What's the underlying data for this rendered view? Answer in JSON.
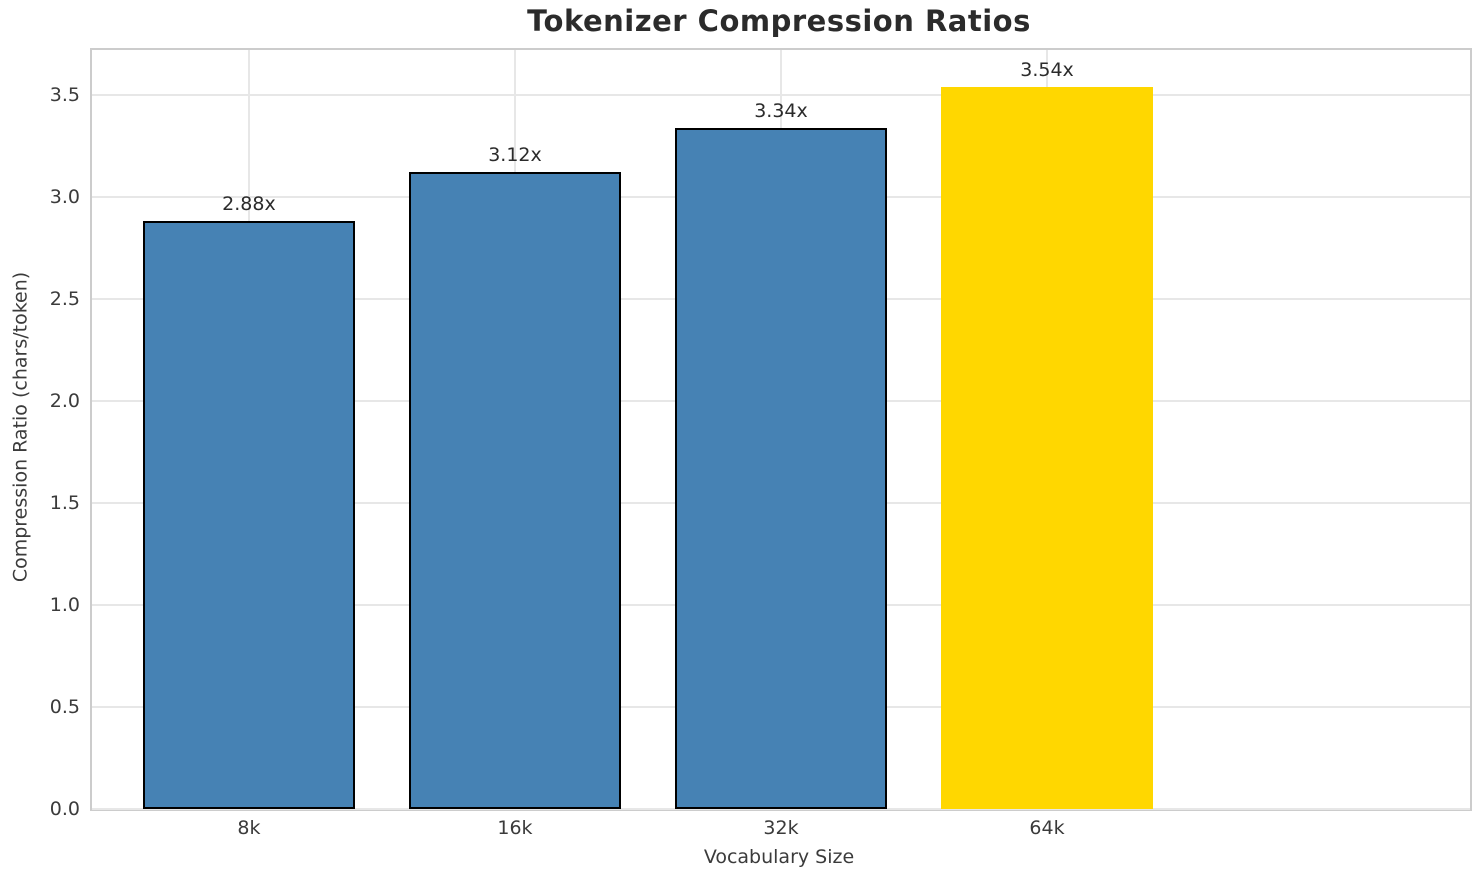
{
  "chart_data": {
    "type": "bar",
    "title": "Tokenizer Compression Ratios",
    "xlabel": "Vocabulary Size",
    "ylabel": "Compression Ratio (chars/token)",
    "categories": [
      "8k",
      "16k",
      "32k",
      "64k"
    ],
    "values": [
      2.88,
      3.12,
      3.34,
      3.54
    ],
    "bar_labels": [
      "2.88x",
      "3.12x",
      "3.34x",
      "3.54x"
    ],
    "bar_colors": [
      "#4682b4",
      "#4682b4",
      "#4682b4",
      "#ffd700"
    ],
    "bar_edge_colors": [
      "#000000",
      "#000000",
      "#000000",
      "none"
    ],
    "highlighted_category": "64k",
    "yticks": [
      0.0,
      0.5,
      1.0,
      1.5,
      2.0,
      2.5,
      3.0,
      3.5
    ],
    "ytick_labels": [
      "0.0",
      "0.5",
      "1.0",
      "1.5",
      "2.0",
      "2.5",
      "3.0",
      "3.5"
    ],
    "ylim": [
      0,
      3.72
    ],
    "grid": true,
    "grid_color": "#e7e7e7",
    "spine_color": "#cccccc",
    "bar_width_fraction": 0.8,
    "legend": null
  }
}
